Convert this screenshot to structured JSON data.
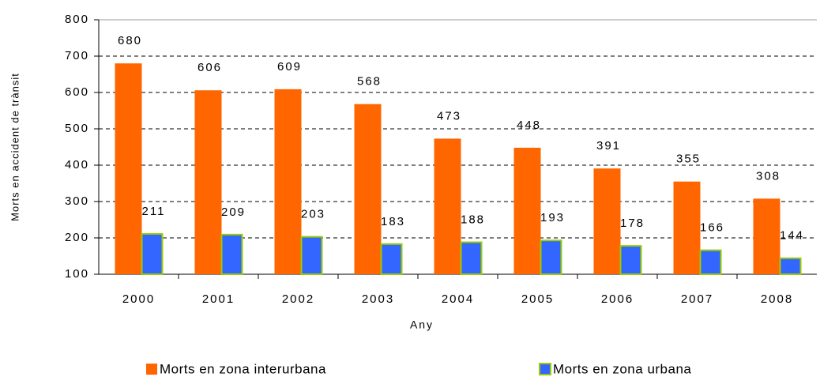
{
  "chart_data": {
    "type": "bar",
    "x_label": "Any",
    "y_label": "Morts en accident de trànsit",
    "categories": [
      "2000",
      "2001",
      "2002",
      "2003",
      "2004",
      "2005",
      "2006",
      "2007",
      "2008"
    ],
    "series": [
      {
        "name": "Morts en zona interurbana",
        "color": "#ff6600",
        "values": [
          680,
          606,
          609,
          568,
          473,
          448,
          391,
          355,
          308
        ]
      },
      {
        "name": "Morts en zona urbana",
        "color": "#3366ff",
        "values": [
          211,
          209,
          203,
          183,
          188,
          193,
          178,
          166,
          144
        ]
      }
    ],
    "ylim": [
      100,
      800
    ],
    "yticks": [
      100,
      200,
      300,
      400,
      500,
      600,
      700,
      800
    ],
    "grid": true
  }
}
